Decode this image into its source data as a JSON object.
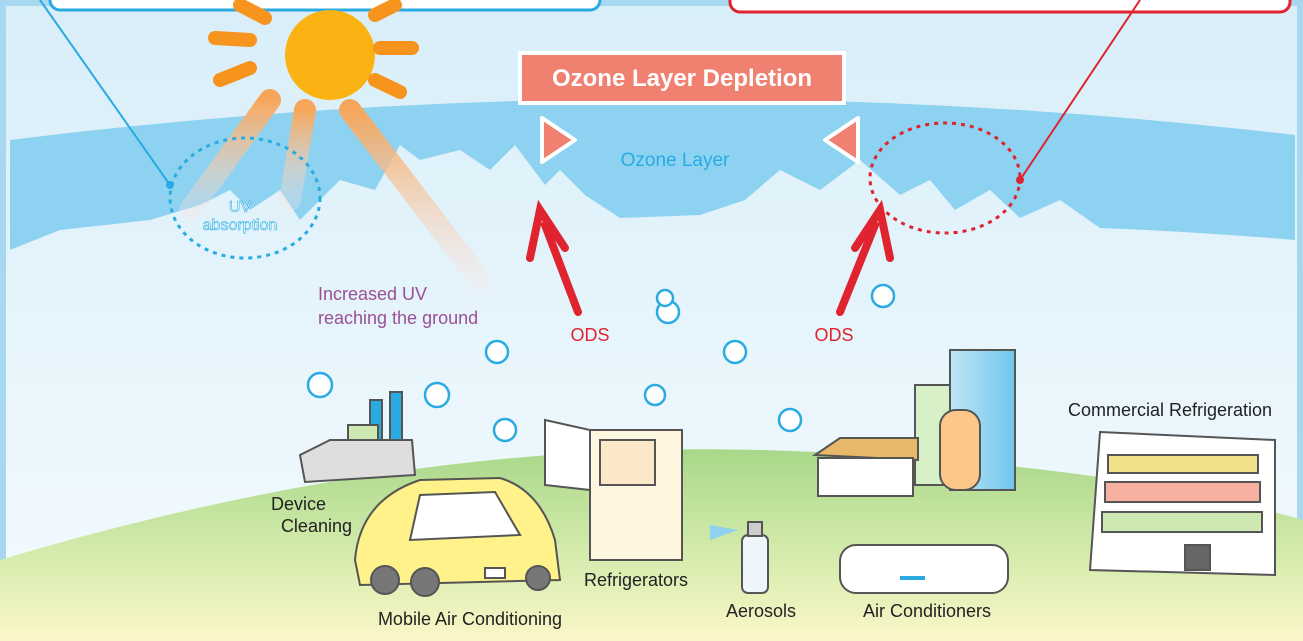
{
  "title": "Ozone Layer Depletion",
  "ozone_layer": "Ozone Layer",
  "uv_absorption": [
    "UV",
    "absorption"
  ],
  "increased_uv": [
    "Increased UV",
    "reaching the ground"
  ],
  "ods_labels": [
    "ODS",
    "ODS"
  ],
  "sources": {
    "device_cleaning": [
      "Device",
      "Cleaning"
    ],
    "mobile_air_conditioning": "Mobile Air Conditioning",
    "refrigerators": "Refrigerators",
    "aerosols": "Aerosols",
    "air_conditioners": "Air Conditioners",
    "commercial_refrigeration": "Commercial Refrigeration"
  }
}
